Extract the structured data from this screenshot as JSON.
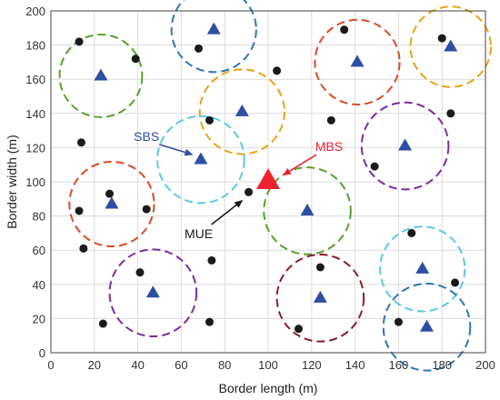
{
  "chart_data": {
    "type": "scatter",
    "title": "",
    "xlabel": "Border length (m)",
    "ylabel": "Border width (m)",
    "xlim": [
      0,
      200
    ],
    "ylim": [
      0,
      200
    ],
    "xticks": [
      0,
      20,
      40,
      60,
      80,
      100,
      120,
      140,
      160,
      180,
      200
    ],
    "yticks": [
      0,
      20,
      40,
      60,
      80,
      100,
      120,
      140,
      160,
      180,
      200
    ],
    "grid": true,
    "mbs": {
      "x": 100,
      "y": 100,
      "color": "#ee2233"
    },
    "sbs": [
      {
        "x": 75,
        "y": 189
      },
      {
        "x": 23,
        "y": 162
      },
      {
        "x": 88,
        "y": 141
      },
      {
        "x": 141,
        "y": 170
      },
      {
        "x": 184,
        "y": 179
      },
      {
        "x": 69,
        "y": 113
      },
      {
        "x": 163,
        "y": 121
      },
      {
        "x": 28,
        "y": 87
      },
      {
        "x": 118,
        "y": 83
      },
      {
        "x": 171,
        "y": 49
      },
      {
        "x": 47,
        "y": 35
      },
      {
        "x": 124,
        "y": 32
      },
      {
        "x": 173,
        "y": 15
      }
    ],
    "sbs_color": "#2e4ea3",
    "coverage_circles": [
      {
        "x": 75,
        "y": 189,
        "r": 19.5,
        "color": "#2f75b5"
      },
      {
        "x": 23,
        "y": 162,
        "r": 19,
        "color": "#5aa02c"
      },
      {
        "x": 88,
        "y": 141,
        "r": 19.5,
        "color": "#e8a317"
      },
      {
        "x": 141,
        "y": 170,
        "r": 19.5,
        "color": "#dd4a26"
      },
      {
        "x": 184,
        "y": 179,
        "r": 18.5,
        "color": "#e8a317"
      },
      {
        "x": 69,
        "y": 113,
        "r": 20,
        "color": "#5bc8ea"
      },
      {
        "x": 163,
        "y": 121,
        "r": 20,
        "color": "#7b2d9e"
      },
      {
        "x": 28,
        "y": 87,
        "r": 19.5,
        "color": "#dd4a26"
      },
      {
        "x": 118,
        "y": 83,
        "r": 20,
        "color": "#5aa02c"
      },
      {
        "x": 171,
        "y": 49,
        "r": 19.5,
        "color": "#5bc8ea"
      },
      {
        "x": 47,
        "y": 35,
        "r": 20,
        "color": "#7b2d9e"
      },
      {
        "x": 124,
        "y": 32,
        "r": 20,
        "color": "#8b1a2b"
      },
      {
        "x": 173,
        "y": 15,
        "r": 20,
        "color": "#2f75b5"
      }
    ],
    "mue": [
      {
        "x": 13,
        "y": 182
      },
      {
        "x": 39,
        "y": 172
      },
      {
        "x": 68,
        "y": 178
      },
      {
        "x": 104,
        "y": 165
      },
      {
        "x": 135,
        "y": 189
      },
      {
        "x": 180,
        "y": 184
      },
      {
        "x": 73,
        "y": 136
      },
      {
        "x": 129,
        "y": 136
      },
      {
        "x": 184,
        "y": 140
      },
      {
        "x": 14,
        "y": 123
      },
      {
        "x": 149,
        "y": 109
      },
      {
        "x": 91,
        "y": 94
      },
      {
        "x": 27,
        "y": 93
      },
      {
        "x": 13,
        "y": 83
      },
      {
        "x": 44,
        "y": 84
      },
      {
        "x": 15,
        "y": 61
      },
      {
        "x": 166,
        "y": 70
      },
      {
        "x": 74,
        "y": 54
      },
      {
        "x": 124,
        "y": 50
      },
      {
        "x": 41,
        "y": 47
      },
      {
        "x": 186,
        "y": 41
      },
      {
        "x": 24,
        "y": 17
      },
      {
        "x": 73,
        "y": 18
      },
      {
        "x": 160,
        "y": 18
      },
      {
        "x": 114,
        "y": 14
      }
    ],
    "mue_color": "#1a1a1a",
    "annotations": [
      {
        "text": "SBS",
        "x": 44,
        "y": 124,
        "color": "#2e4ea3",
        "arrow_to": {
          "x": 65,
          "y": 116
        }
      },
      {
        "text": "MBS",
        "x": 128,
        "y": 118,
        "color": "#ee2233",
        "arrow_to": {
          "x": 107,
          "y": 104
        }
      },
      {
        "text": "MUE",
        "x": 68,
        "y": 67,
        "color": "#1a1a1a",
        "arrow_to": {
          "x": 88,
          "y": 89
        }
      }
    ]
  }
}
